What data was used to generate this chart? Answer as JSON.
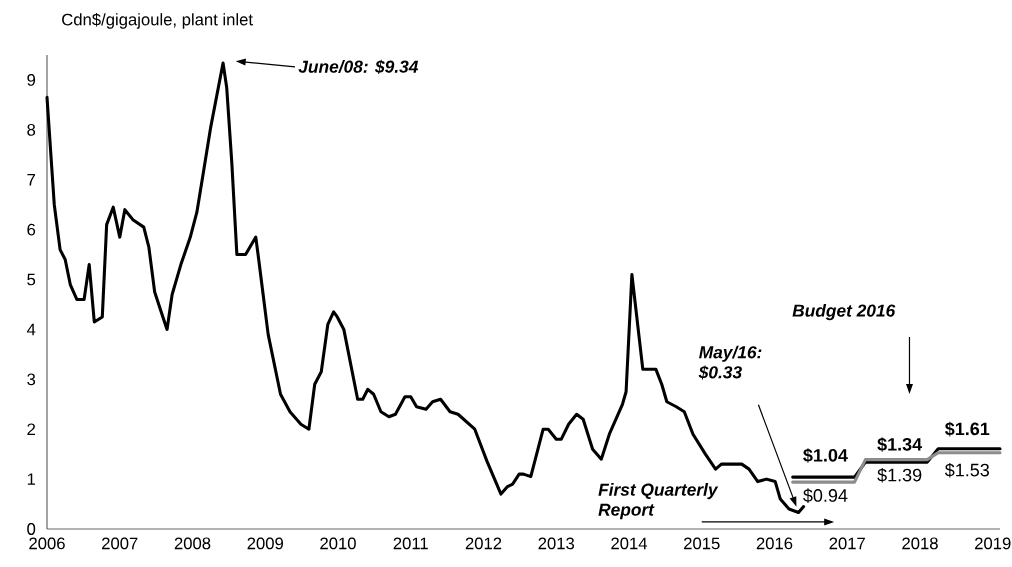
{
  "chart_data": {
    "type": "line",
    "ylabel": "Cdn$/gigajoule, plant inlet",
    "xlim": [
      2006,
      2019.1
    ],
    "ylim": [
      0,
      9.5
    ],
    "xticks": [
      2006,
      2007,
      2008,
      2009,
      2010,
      2011,
      2012,
      2013,
      2014,
      2015,
      2016,
      2017,
      2018,
      2019
    ],
    "yticks": [
      0,
      1,
      2,
      3,
      4,
      5,
      6,
      7,
      8,
      9
    ],
    "series": [
      {
        "type": "line",
        "color": "#000000",
        "x": [
          2006.0,
          2006.1,
          2006.18,
          2006.25,
          2006.32,
          2006.41,
          2006.51,
          2006.58,
          2006.65,
          2006.76,
          2006.82,
          2006.91,
          2007.0,
          2007.07,
          2007.18,
          2007.33,
          2007.4,
          2007.48,
          2007.57,
          2007.65,
          2007.72,
          2007.84,
          2007.97,
          2008.06,
          2008.15,
          2008.25,
          2008.42,
          2008.47,
          2008.54,
          2008.61,
          2008.73,
          2008.87,
          2008.91,
          2009.04,
          2009.21,
          2009.34,
          2009.49,
          2009.6,
          2009.68,
          2009.77,
          2009.86,
          2009.94,
          2009.99,
          2010.08,
          2010.27,
          2010.34,
          2010.41,
          2010.49,
          2010.59,
          2010.7,
          2010.79,
          2010.92,
          2011.0,
          2011.08,
          2011.21,
          2011.3,
          2011.41,
          2011.54,
          2011.65,
          2011.88,
          2012.05,
          2012.24,
          2012.33,
          2012.4,
          2012.49,
          2012.55,
          2012.65,
          2012.82,
          2012.89,
          2013.0,
          2013.07,
          2013.17,
          2013.28,
          2013.37,
          2013.5,
          2013.62,
          2013.73,
          2013.91,
          2013.96,
          2014.04,
          2014.19,
          2014.37,
          2014.45,
          2014.52,
          2014.65,
          2014.76,
          2014.88,
          2015.05,
          2015.19,
          2015.27,
          2015.41,
          2015.55,
          2015.65,
          2015.77,
          2015.89,
          2016.01,
          2016.08,
          2016.2,
          2016.33,
          2016.4
        ],
        "values": [
          8.65,
          6.5,
          5.6,
          5.4,
          4.9,
          4.6,
          4.6,
          5.3,
          4.15,
          4.25,
          6.1,
          6.45,
          5.85,
          6.4,
          6.2,
          6.05,
          5.65,
          4.75,
          4.35,
          4.0,
          4.7,
          5.3,
          5.85,
          6.35,
          7.15,
          8.05,
          9.34,
          8.85,
          7.35,
          5.5,
          5.5,
          5.85,
          5.4,
          3.9,
          2.7,
          2.35,
          2.1,
          2.0,
          2.9,
          3.15,
          4.1,
          4.35,
          4.25,
          4.0,
          2.6,
          2.6,
          2.8,
          2.7,
          2.35,
          2.25,
          2.3,
          2.65,
          2.65,
          2.45,
          2.4,
          2.55,
          2.6,
          2.35,
          2.3,
          2.0,
          1.35,
          0.7,
          0.85,
          0.9,
          1.1,
          1.1,
          1.05,
          2.0,
          2.0,
          1.8,
          1.8,
          2.1,
          2.3,
          2.2,
          1.6,
          1.4,
          1.9,
          2.5,
          2.75,
          5.1,
          3.2,
          3.2,
          2.9,
          2.55,
          2.45,
          2.35,
          1.9,
          1.5,
          1.2,
          1.3,
          1.3,
          1.3,
          1.2,
          0.95,
          1.0,
          0.95,
          0.6,
          0.4,
          0.33,
          0.45
        ]
      },
      {
        "type": "line",
        "color": "#000000",
        "x": [
          2016.25,
          2017.1,
          2017.25,
          2018.1,
          2018.25,
          2019.1
        ],
        "values": [
          1.04,
          1.04,
          1.34,
          1.34,
          1.61,
          1.61
        ]
      },
      {
        "type": "line",
        "color": "#8c8c8c",
        "x": [
          2016.25,
          2017.1,
          2017.25,
          2018.1,
          2018.25,
          2019.1
        ],
        "values": [
          0.94,
          0.94,
          1.39,
          1.39,
          1.53,
          1.53
        ]
      }
    ],
    "annotations": [
      "June/08: $9.34",
      "May/16: $0.33",
      "Budget 2016",
      "First Quarterly Report",
      {
        "text": "$1.04",
        "x": 2016.7,
        "y": 1.04
      },
      {
        "text": "$1.34",
        "x": 2017.72,
        "y": 1.34
      },
      {
        "text": "$1.61",
        "x": 2018.65,
        "y": 1.61
      },
      {
        "text": "$0.94",
        "x": 2016.7,
        "y": 0.94
      },
      {
        "text": "$1.39",
        "x": 2017.72,
        "y": 1.39
      },
      {
        "text": "$1.53",
        "x": 2018.65,
        "y": 1.53
      }
    ]
  }
}
